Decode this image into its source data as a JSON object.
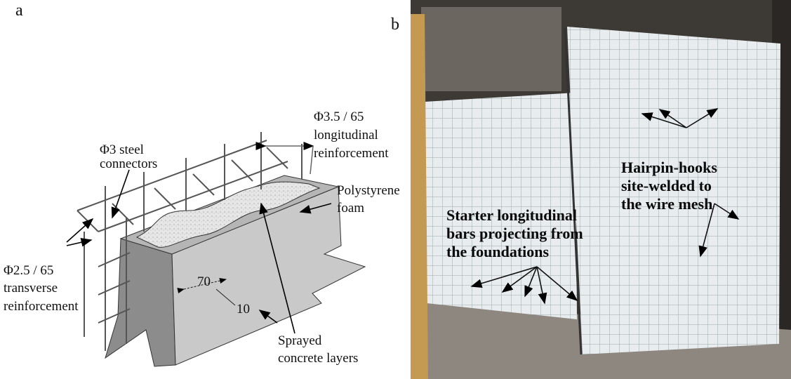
{
  "panel_a": {
    "label": "a",
    "longitudinal": [
      "Φ3.5 / 65",
      "longitudinal",
      "reinforcement"
    ],
    "connectors": [
      "Φ3 steel",
      "connectors"
    ],
    "foam": [
      "Polystyrene",
      "foam"
    ],
    "dim_70": "70",
    "dim_10": "10",
    "transverse": [
      "Φ2.5 / 65",
      "transverse",
      "reinforcement"
    ],
    "sprayed": [
      "Sprayed",
      "concrete layers"
    ]
  },
  "panel_b": {
    "label": "b",
    "hairpin": [
      "Hairpin-hooks",
      "site-welded to",
      "the wire mesh"
    ],
    "starter": [
      "Starter longitudinal",
      "bars projecting from",
      "the foundations"
    ]
  }
}
